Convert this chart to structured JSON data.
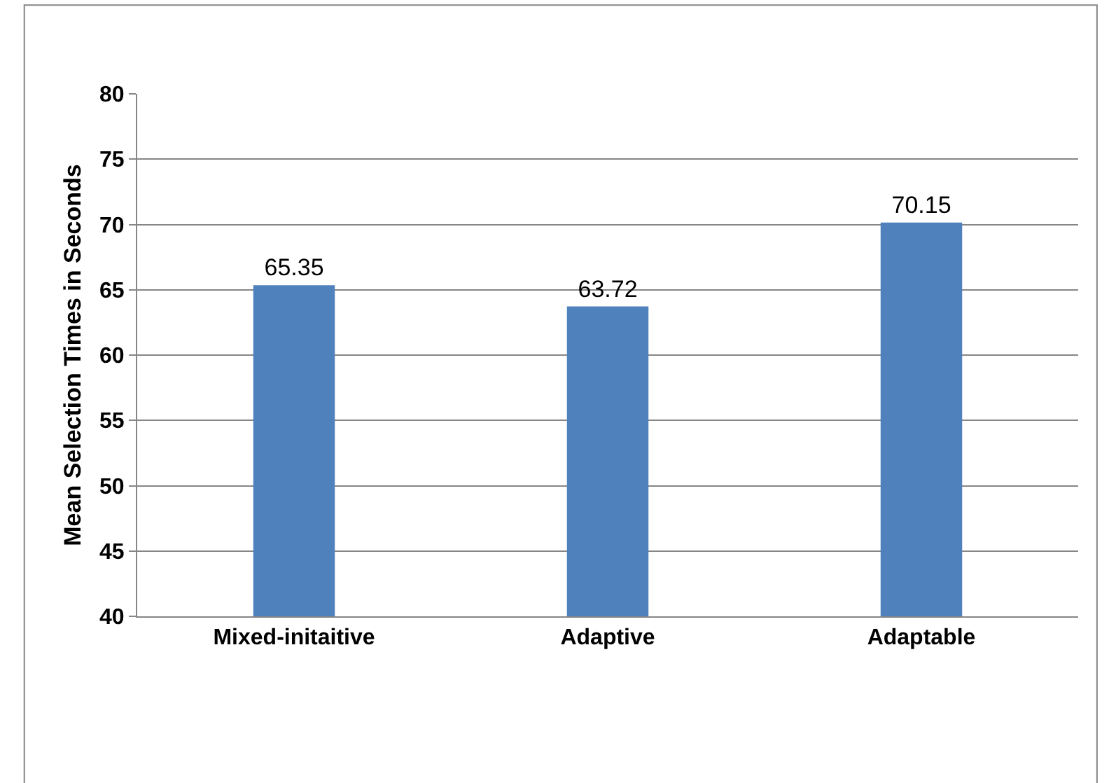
{
  "chart_data": {
    "type": "bar",
    "categories": [
      "Mixed-initaitive",
      "Adaptive",
      "Adaptable"
    ],
    "values": [
      65.35,
      63.72,
      70.15
    ],
    "color": "#4f81bd",
    "ylabel": "Mean Selection Times in Seconds",
    "ylim": [
      40,
      80
    ],
    "yticks": [
      40,
      45,
      50,
      55,
      60,
      65,
      70,
      75,
      80
    ],
    "grid": "y",
    "data_labels": true,
    "legend": false
  }
}
